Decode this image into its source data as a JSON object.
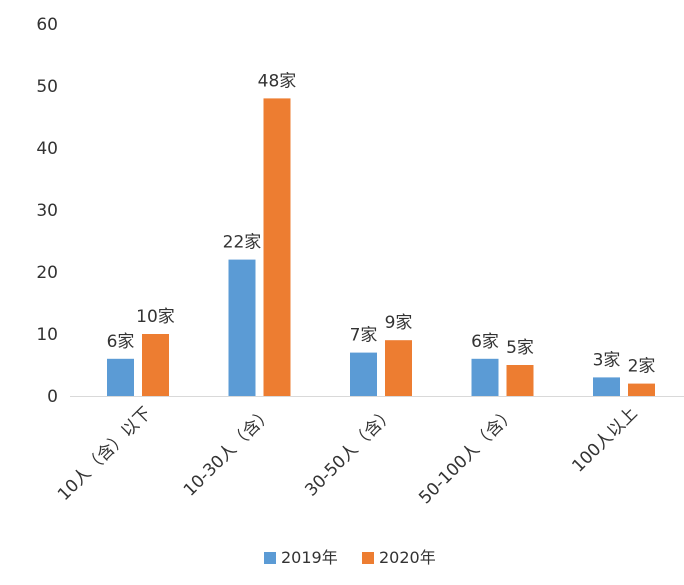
{
  "chart_data": {
    "type": "bar",
    "title": "",
    "xlabel": "",
    "ylabel": "",
    "ylim": [
      0,
      60
    ],
    "yticks": [
      "0",
      "10",
      "20",
      "30",
      "40",
      "50",
      "60"
    ],
    "grid": false,
    "legend_position": "bottom",
    "categories": [
      "10人（含）以下",
      "10-30人（含）",
      "30-50人（含）",
      "50-100人（含）",
      "100人以上"
    ],
    "series": [
      {
        "name": "2019年",
        "color": "#5B9BD5",
        "values": [
          6,
          22,
          7,
          6,
          3
        ],
        "labels": [
          "6家",
          "22家",
          "7家",
          "6家",
          "3家"
        ]
      },
      {
        "name": "2020年",
        "color": "#ED7D31",
        "values": [
          10,
          48,
          9,
          5,
          2
        ],
        "labels": [
          "10家",
          "48家",
          "9家",
          "5家",
          "2家"
        ]
      }
    ]
  }
}
